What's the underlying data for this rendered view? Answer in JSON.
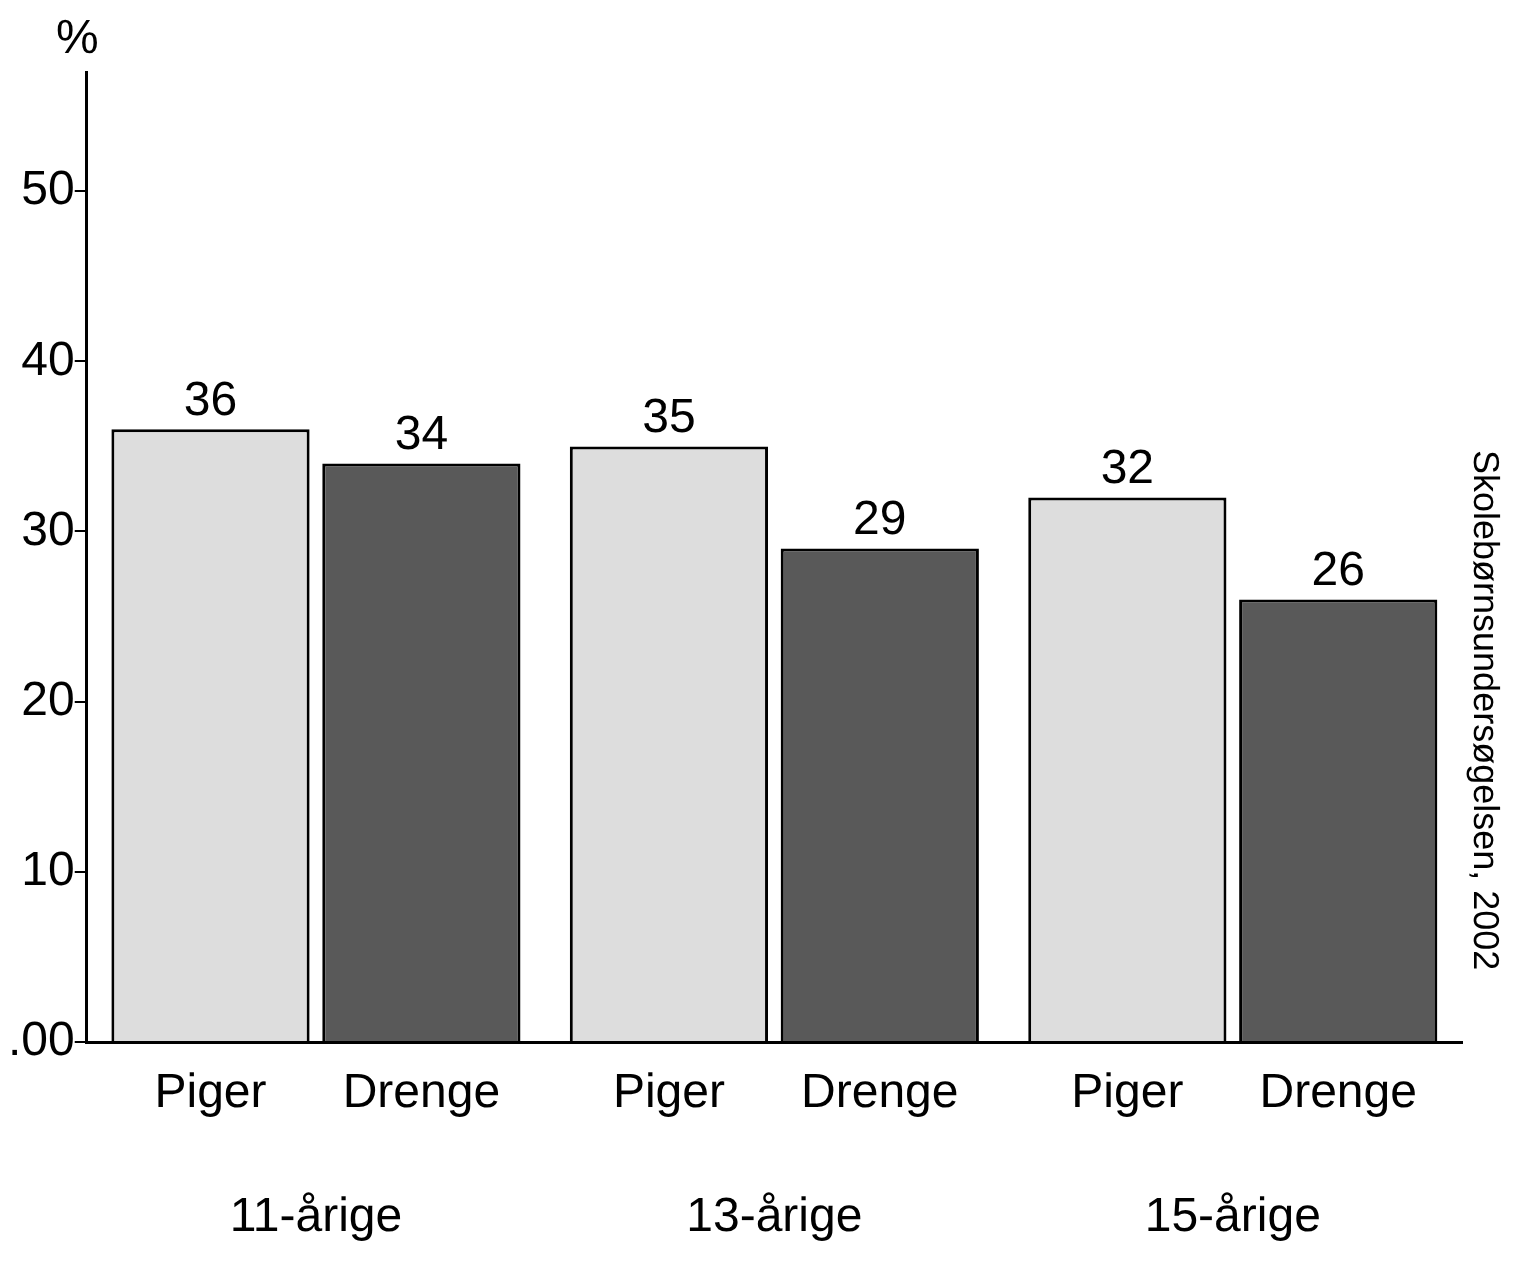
{
  "chart_data": {
    "type": "bar",
    "ylabel": "%",
    "categories": [
      "11-årige",
      "13-årige",
      "15-årige"
    ],
    "series": [
      {
        "name": "Piger",
        "color": "#dddddd",
        "values": [
          36,
          35,
          32
        ]
      },
      {
        "name": "Drenge",
        "color": "#595959",
        "values": [
          34,
          29,
          26
        ]
      }
    ],
    "ylim": [
      0,
      57
    ],
    "yticks": [
      {
        "value": 0,
        "label": ".00"
      },
      10,
      20,
      30,
      40,
      50
    ],
    "data_labels": true,
    "grid": false,
    "legend": false,
    "annotations": [
      "Skolebørnsundersøgelsen, 2002"
    ]
  }
}
